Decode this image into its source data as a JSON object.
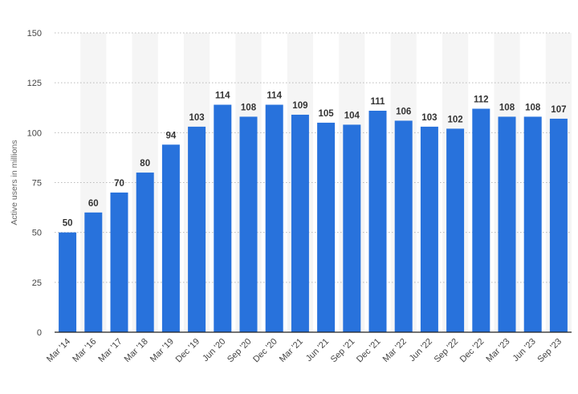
{
  "chart_data": {
    "type": "bar",
    "ylabel": "Active users in millions",
    "xlabel": "",
    "ylim": [
      0,
      150
    ],
    "yticks": [
      0,
      25,
      50,
      75,
      100,
      125,
      150
    ],
    "grid": true,
    "categories": [
      "Mar '14",
      "Mar '16",
      "Mar '17",
      "Mar '18",
      "Mar '19",
      "Dec '19",
      "Jun '20",
      "Sep '20",
      "Dec '20",
      "Mar '21",
      "Jun '21",
      "Sep '21",
      "Dec '21",
      "Mar '22",
      "Jun '22",
      "Sep '22",
      "Dec '22",
      "Mar '23",
      "Jun '23",
      "Sep '23"
    ],
    "values": [
      50,
      60,
      70,
      80,
      94,
      103,
      114,
      108,
      114,
      109,
      105,
      104,
      111,
      106,
      103,
      102,
      112,
      108,
      108,
      107
    ],
    "bar_color": "#2872dc",
    "band_color": "#f5f5f5",
    "grid_color": "#bbbbbb"
  }
}
